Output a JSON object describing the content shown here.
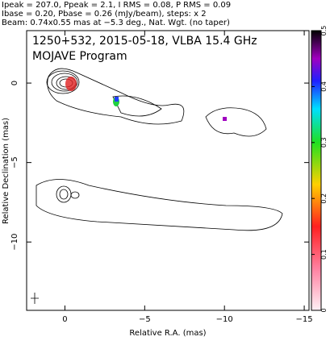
{
  "chart_data": {
    "type": "contour",
    "header": [
      "Ipeak = 207.0, Ppeak = 2.1, I RMS = 0.08, P RMS = 0.09",
      "Ibase = 0.20, Pbase = 0.26 (mJy/beam), steps: x 2",
      "Beam: 0.74x0.55 mas at −5.3 deg., Nat. Wgt. (no taper)"
    ],
    "title": "1250+532, 2015-05-18, VLBA 15.4 GHz",
    "subtitle": "MOJAVE Program",
    "xlabel": "Relative R.A. (mas)",
    "ylabel": "Relative Declination (mas)",
    "xlim": [
      2.4,
      -15.3
    ],
    "xticks": [
      0,
      {
        "value": -5,
        "label": "−5"
      },
      {
        "value": -10,
        "label": "−10"
      },
      {
        "value": -15,
        "label": "−15"
      }
    ],
    "ylim": [
      -14.3,
      3.3
    ],
    "yticks": [
      0,
      {
        "value": -5,
        "label": "−5"
      },
      {
        "value": -10,
        "label": "−10"
      }
    ],
    "colorbar_lim": [
      0,
      0.5
    ],
    "colorbar_ticks": [
      0,
      0.1,
      0.2,
      0.3,
      0.4,
      0.5
    ]
  }
}
